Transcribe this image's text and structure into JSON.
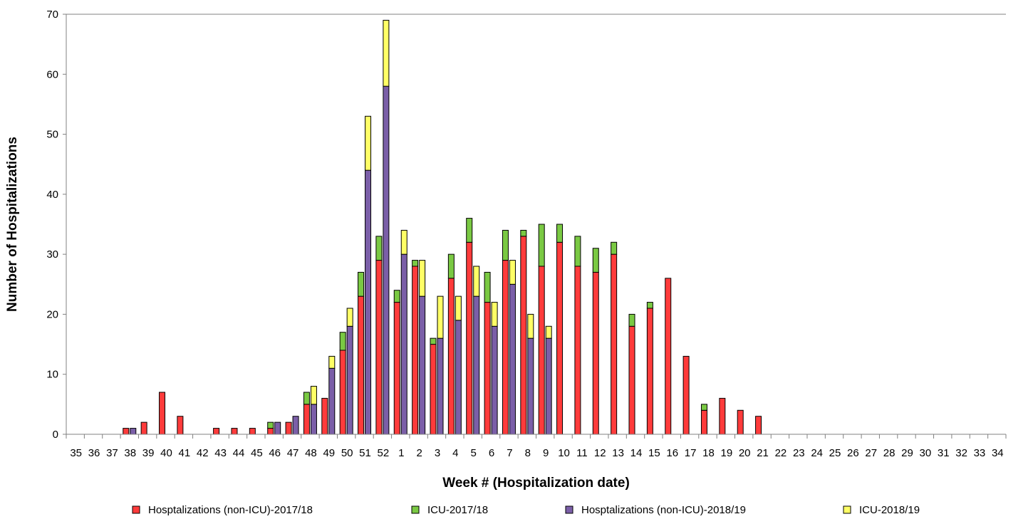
{
  "chart_data": {
    "type": "bar",
    "stacked": true,
    "title": "",
    "xlabel": "Week # (Hospitalization date)",
    "ylabel": "Number of Hospitalizations",
    "ylim": [
      0,
      70
    ],
    "yticks": [
      0,
      10,
      20,
      30,
      40,
      50,
      60,
      70
    ],
    "grid": false,
    "legend_position": "bottom",
    "categories": [
      "35",
      "36",
      "37",
      "38",
      "39",
      "40",
      "41",
      "42",
      "43",
      "44",
      "45",
      "46",
      "47",
      "48",
      "49",
      "50",
      "51",
      "52",
      "1",
      "2",
      "3",
      "4",
      "5",
      "6",
      "7",
      "8",
      "9",
      "10",
      "11",
      "12",
      "13",
      "14",
      "15",
      "16",
      "17",
      "18",
      "19",
      "20",
      "21",
      "22",
      "23",
      "24",
      "25",
      "26",
      "27",
      "28",
      "29",
      "30",
      "31",
      "32",
      "33",
      "34"
    ],
    "groups": [
      {
        "season": "2017/18",
        "series": [
          {
            "name": "Hosptalizations (non-ICU)-2017/18",
            "color": "#ff3b3b",
            "values": [
              0,
              0,
              0,
              1,
              2,
              7,
              3,
              0,
              1,
              1,
              1,
              1,
              2,
              5,
              6,
              14,
              23,
              29,
              22,
              28,
              15,
              26,
              32,
              22,
              29,
              33,
              28,
              32,
              28,
              27,
              30,
              18,
              21,
              26,
              13,
              4,
              6,
              4,
              3,
              0,
              0,
              0,
              0,
              0,
              0,
              0,
              0,
              0,
              0,
              0,
              0,
              0
            ]
          },
          {
            "name": "ICU-2017/18",
            "color": "#7ac943",
            "values": [
              0,
              0,
              0,
              0,
              0,
              0,
              0,
              0,
              0,
              0,
              0,
              1,
              0,
              2,
              0,
              3,
              4,
              4,
              2,
              1,
              1,
              4,
              4,
              5,
              5,
              1,
              7,
              3,
              5,
              4,
              2,
              2,
              1,
              0,
              0,
              1,
              0,
              0,
              0,
              0,
              0,
              0,
              0,
              0,
              0,
              0,
              0,
              0,
              0,
              0,
              0,
              0
            ]
          }
        ]
      },
      {
        "season": "2018/19",
        "series": [
          {
            "name": "Hosptalizations (non-ICU)-2018/19",
            "color": "#7b5fa8",
            "values": [
              0,
              0,
              0,
              1,
              0,
              0,
              0,
              0,
              0,
              0,
              0,
              2,
              3,
              5,
              11,
              18,
              44,
              58,
              30,
              23,
              16,
              19,
              23,
              18,
              25,
              16,
              16,
              0,
              0,
              0,
              0,
              0,
              0,
              0,
              0,
              0,
              0,
              0,
              0,
              0,
              0,
              0,
              0,
              0,
              0,
              0,
              0,
              0,
              0,
              0,
              0,
              0
            ]
          },
          {
            "name": "ICU-2018/19",
            "color": "#ffff66",
            "values": [
              0,
              0,
              0,
              0,
              0,
              0,
              0,
              0,
              0,
              0,
              0,
              0,
              0,
              3,
              2,
              3,
              9,
              11,
              4,
              6,
              7,
              4,
              5,
              4,
              4,
              4,
              2,
              0,
              0,
              0,
              0,
              0,
              0,
              0,
              0,
              0,
              0,
              0,
              0,
              0,
              0,
              0,
              0,
              0,
              0,
              0,
              0,
              0,
              0,
              0,
              0,
              0
            ]
          }
        ]
      }
    ]
  }
}
